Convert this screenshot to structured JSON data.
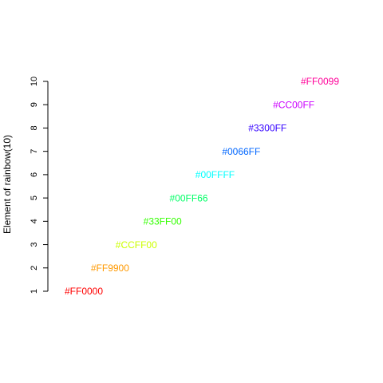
{
  "chart_data": {
    "type": "scatter",
    "ylabel": "Element of rainbow(10)",
    "ylim": [
      1,
      10
    ],
    "y_ticks": [
      1,
      2,
      3,
      4,
      5,
      6,
      7,
      8,
      9,
      10
    ],
    "x_axis_visible": false,
    "grid": false,
    "points": [
      {
        "x": 1,
        "y": 1,
        "label": "#FF0000",
        "color": "#FF0000"
      },
      {
        "x": 2,
        "y": 2,
        "label": "#FF9900",
        "color": "#FF9900"
      },
      {
        "x": 3,
        "y": 3,
        "label": "#CCFF00",
        "color": "#CCFF00"
      },
      {
        "x": 4,
        "y": 4,
        "label": "#33FF00",
        "color": "#33FF00"
      },
      {
        "x": 5,
        "y": 5,
        "label": "#00FF66",
        "color": "#00FF66"
      },
      {
        "x": 6,
        "y": 6,
        "label": "#00FFFF",
        "color": "#00FFFF"
      },
      {
        "x": 7,
        "y": 7,
        "label": "#0066FF",
        "color": "#0066FF"
      },
      {
        "x": 8,
        "y": 8,
        "label": "#3300FF",
        "color": "#3300FF"
      },
      {
        "x": 9,
        "y": 9,
        "label": "#CC00FF",
        "color": "#CC00FF"
      },
      {
        "x": 10,
        "y": 10,
        "label": "#FF0099",
        "color": "#FF0099"
      }
    ]
  }
}
